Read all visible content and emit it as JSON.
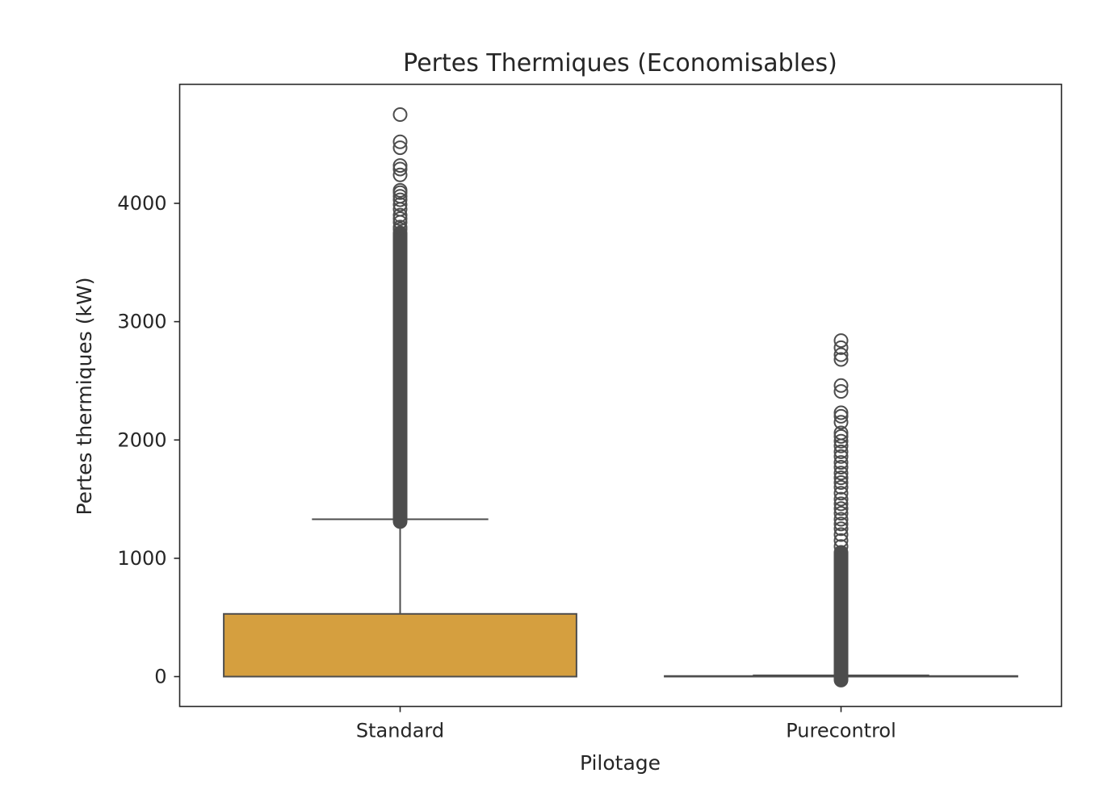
{
  "chart_data": {
    "type": "box",
    "title": "Pertes Thermiques (Economisables)",
    "xlabel": "Pilotage",
    "ylabel": "Pertes thermiques (kW)",
    "categories": [
      "Standard",
      "Purecontrol"
    ],
    "ylim": [
      -250,
      5000
    ],
    "yticks": [
      0,
      1000,
      2000,
      3000,
      4000
    ],
    "grid": false,
    "legend": "none",
    "box_color": "#d59f3f",
    "line_color": "#4d4d4d",
    "series": [
      {
        "category": "Standard",
        "q1": 0,
        "median": 0,
        "q3": 530,
        "whisker_low": 0,
        "whisker_high": 1330,
        "outliers_dense_range": [
          1310,
          3750
        ],
        "outliers": [
          3780,
          3800,
          3840,
          3870,
          3900,
          3950,
          3990,
          4030,
          4060,
          4090,
          4110,
          4240,
          4290,
          4320,
          4470,
          4520,
          4750
        ]
      },
      {
        "category": "Purecontrol",
        "q1": 0,
        "median": 0,
        "q3": 5,
        "whisker_low": 0,
        "whisker_high": 10,
        "outliers_dense_range": [
          -30,
          1050
        ],
        "outliers": [
          1100,
          1150,
          1200,
          1250,
          1290,
          1330,
          1380,
          1420,
          1460,
          1500,
          1550,
          1600,
          1640,
          1680,
          1720,
          1770,
          1810,
          1860,
          1900,
          1950,
          1990,
          2030,
          2060,
          2150,
          2200,
          2230,
          2410,
          2460,
          2680,
          2720,
          2780,
          2840
        ]
      }
    ]
  }
}
